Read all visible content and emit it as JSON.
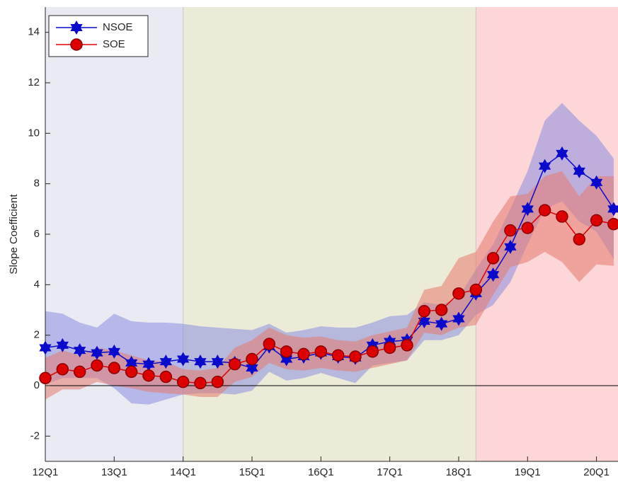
{
  "chart_data": {
    "type": "line",
    "y_label": "Slope Coefficient",
    "x": [
      0,
      1,
      2,
      3,
      4,
      5,
      6,
      7,
      8,
      9,
      10,
      11,
      12,
      13,
      14,
      15,
      16,
      17,
      18,
      19,
      20,
      21,
      22,
      23,
      24,
      25,
      26,
      27,
      28,
      29,
      30,
      31,
      32,
      33
    ],
    "xlim": [
      0,
      33.25
    ],
    "xticks": [
      {
        "value": 0,
        "label": "12Q1"
      },
      {
        "value": 4,
        "label": "13Q1"
      },
      {
        "value": 8,
        "label": "14Q1"
      },
      {
        "value": 12,
        "label": "15Q1"
      },
      {
        "value": 16,
        "label": "16Q1"
      },
      {
        "value": 20,
        "label": "17Q1"
      },
      {
        "value": 24,
        "label": "18Q1"
      },
      {
        "value": 28,
        "label": "19Q1"
      },
      {
        "value": 32,
        "label": "20Q1"
      }
    ],
    "ylim": [
      -3,
      15
    ],
    "yticks": [
      -2,
      0,
      2,
      4,
      6,
      8,
      10,
      12,
      14
    ],
    "zero_line": true,
    "legend": "top-left",
    "shaded_regions": [
      {
        "start": 0,
        "end": 8,
        "color": "#e9eaf2"
      },
      {
        "start": 8,
        "end": 25,
        "color": "#ecebd8"
      },
      {
        "start": 25,
        "end": 33.25,
        "color": "#fdd6d7"
      }
    ],
    "series": [
      {
        "name": "NSOE",
        "color": "#0a0acc",
        "band_color": "#8a8ee0",
        "marker": "hexagram",
        "values": [
          1.5,
          1.6,
          1.4,
          1.3,
          1.35,
          0.9,
          0.85,
          0.95,
          1.05,
          0.95,
          0.95,
          0.9,
          0.7,
          1.55,
          1.05,
          1.15,
          1.3,
          1.15,
          1.1,
          1.6,
          1.75,
          1.8,
          2.55,
          2.45,
          2.65,
          3.65,
          4.4,
          5.5,
          7.0,
          8.7,
          9.2,
          8.5,
          8.05,
          7.0
        ],
        "upper": [
          2.95,
          2.85,
          2.5,
          2.3,
          2.85,
          2.55,
          2.5,
          2.5,
          2.45,
          2.35,
          2.3,
          2.25,
          2.2,
          2.45,
          2.1,
          2.2,
          2.35,
          2.3,
          2.3,
          2.5,
          2.75,
          2.8,
          3.3,
          3.2,
          3.5,
          4.6,
          5.6,
          7.0,
          8.5,
          10.5,
          11.2,
          10.5,
          9.9,
          9.0
        ],
        "lower": [
          0.05,
          0.3,
          0.3,
          0.3,
          -0.1,
          -0.7,
          -0.75,
          -0.55,
          -0.35,
          -0.3,
          -0.3,
          -0.35,
          -0.2,
          0.55,
          0.2,
          0.3,
          0.5,
          0.3,
          0.1,
          0.8,
          0.9,
          1.0,
          1.8,
          1.8,
          2.0,
          2.8,
          3.2,
          4.1,
          5.6,
          7.0,
          7.3,
          6.5,
          6.1,
          5.0
        ]
      },
      {
        "name": "SOE",
        "color": "#dd0000",
        "band_color": "#e57a6e",
        "marker": "circle",
        "values": [
          0.3,
          0.65,
          0.55,
          0.8,
          0.7,
          0.55,
          0.4,
          0.35,
          0.15,
          0.1,
          0.15,
          0.85,
          1.05,
          1.65,
          1.35,
          1.25,
          1.35,
          1.2,
          1.15,
          1.35,
          1.5,
          1.6,
          2.95,
          3.0,
          3.65,
          3.8,
          5.05,
          6.15,
          6.25,
          6.95,
          6.7,
          5.8,
          6.55,
          6.4
        ],
        "upper": [
          1.1,
          1.4,
          1.2,
          1.5,
          1.4,
          1.2,
          1.0,
          0.95,
          0.65,
          0.6,
          0.7,
          1.5,
          1.8,
          2.3,
          2.0,
          1.9,
          1.95,
          1.8,
          1.75,
          2.0,
          2.15,
          2.3,
          3.8,
          3.95,
          5.05,
          5.3,
          6.5,
          7.5,
          7.6,
          8.3,
          8.5,
          7.5,
          8.3,
          8.3
        ],
        "lower": [
          -0.55,
          -0.15,
          -0.15,
          0.15,
          0.0,
          -0.1,
          -0.25,
          -0.3,
          -0.35,
          -0.45,
          -0.45,
          0.15,
          0.35,
          0.9,
          0.65,
          0.6,
          0.7,
          0.6,
          0.55,
          0.7,
          0.85,
          1.0,
          2.1,
          2.0,
          2.3,
          2.4,
          3.6,
          4.7,
          4.9,
          5.3,
          4.9,
          4.1,
          4.8,
          4.75
        ]
      }
    ]
  }
}
